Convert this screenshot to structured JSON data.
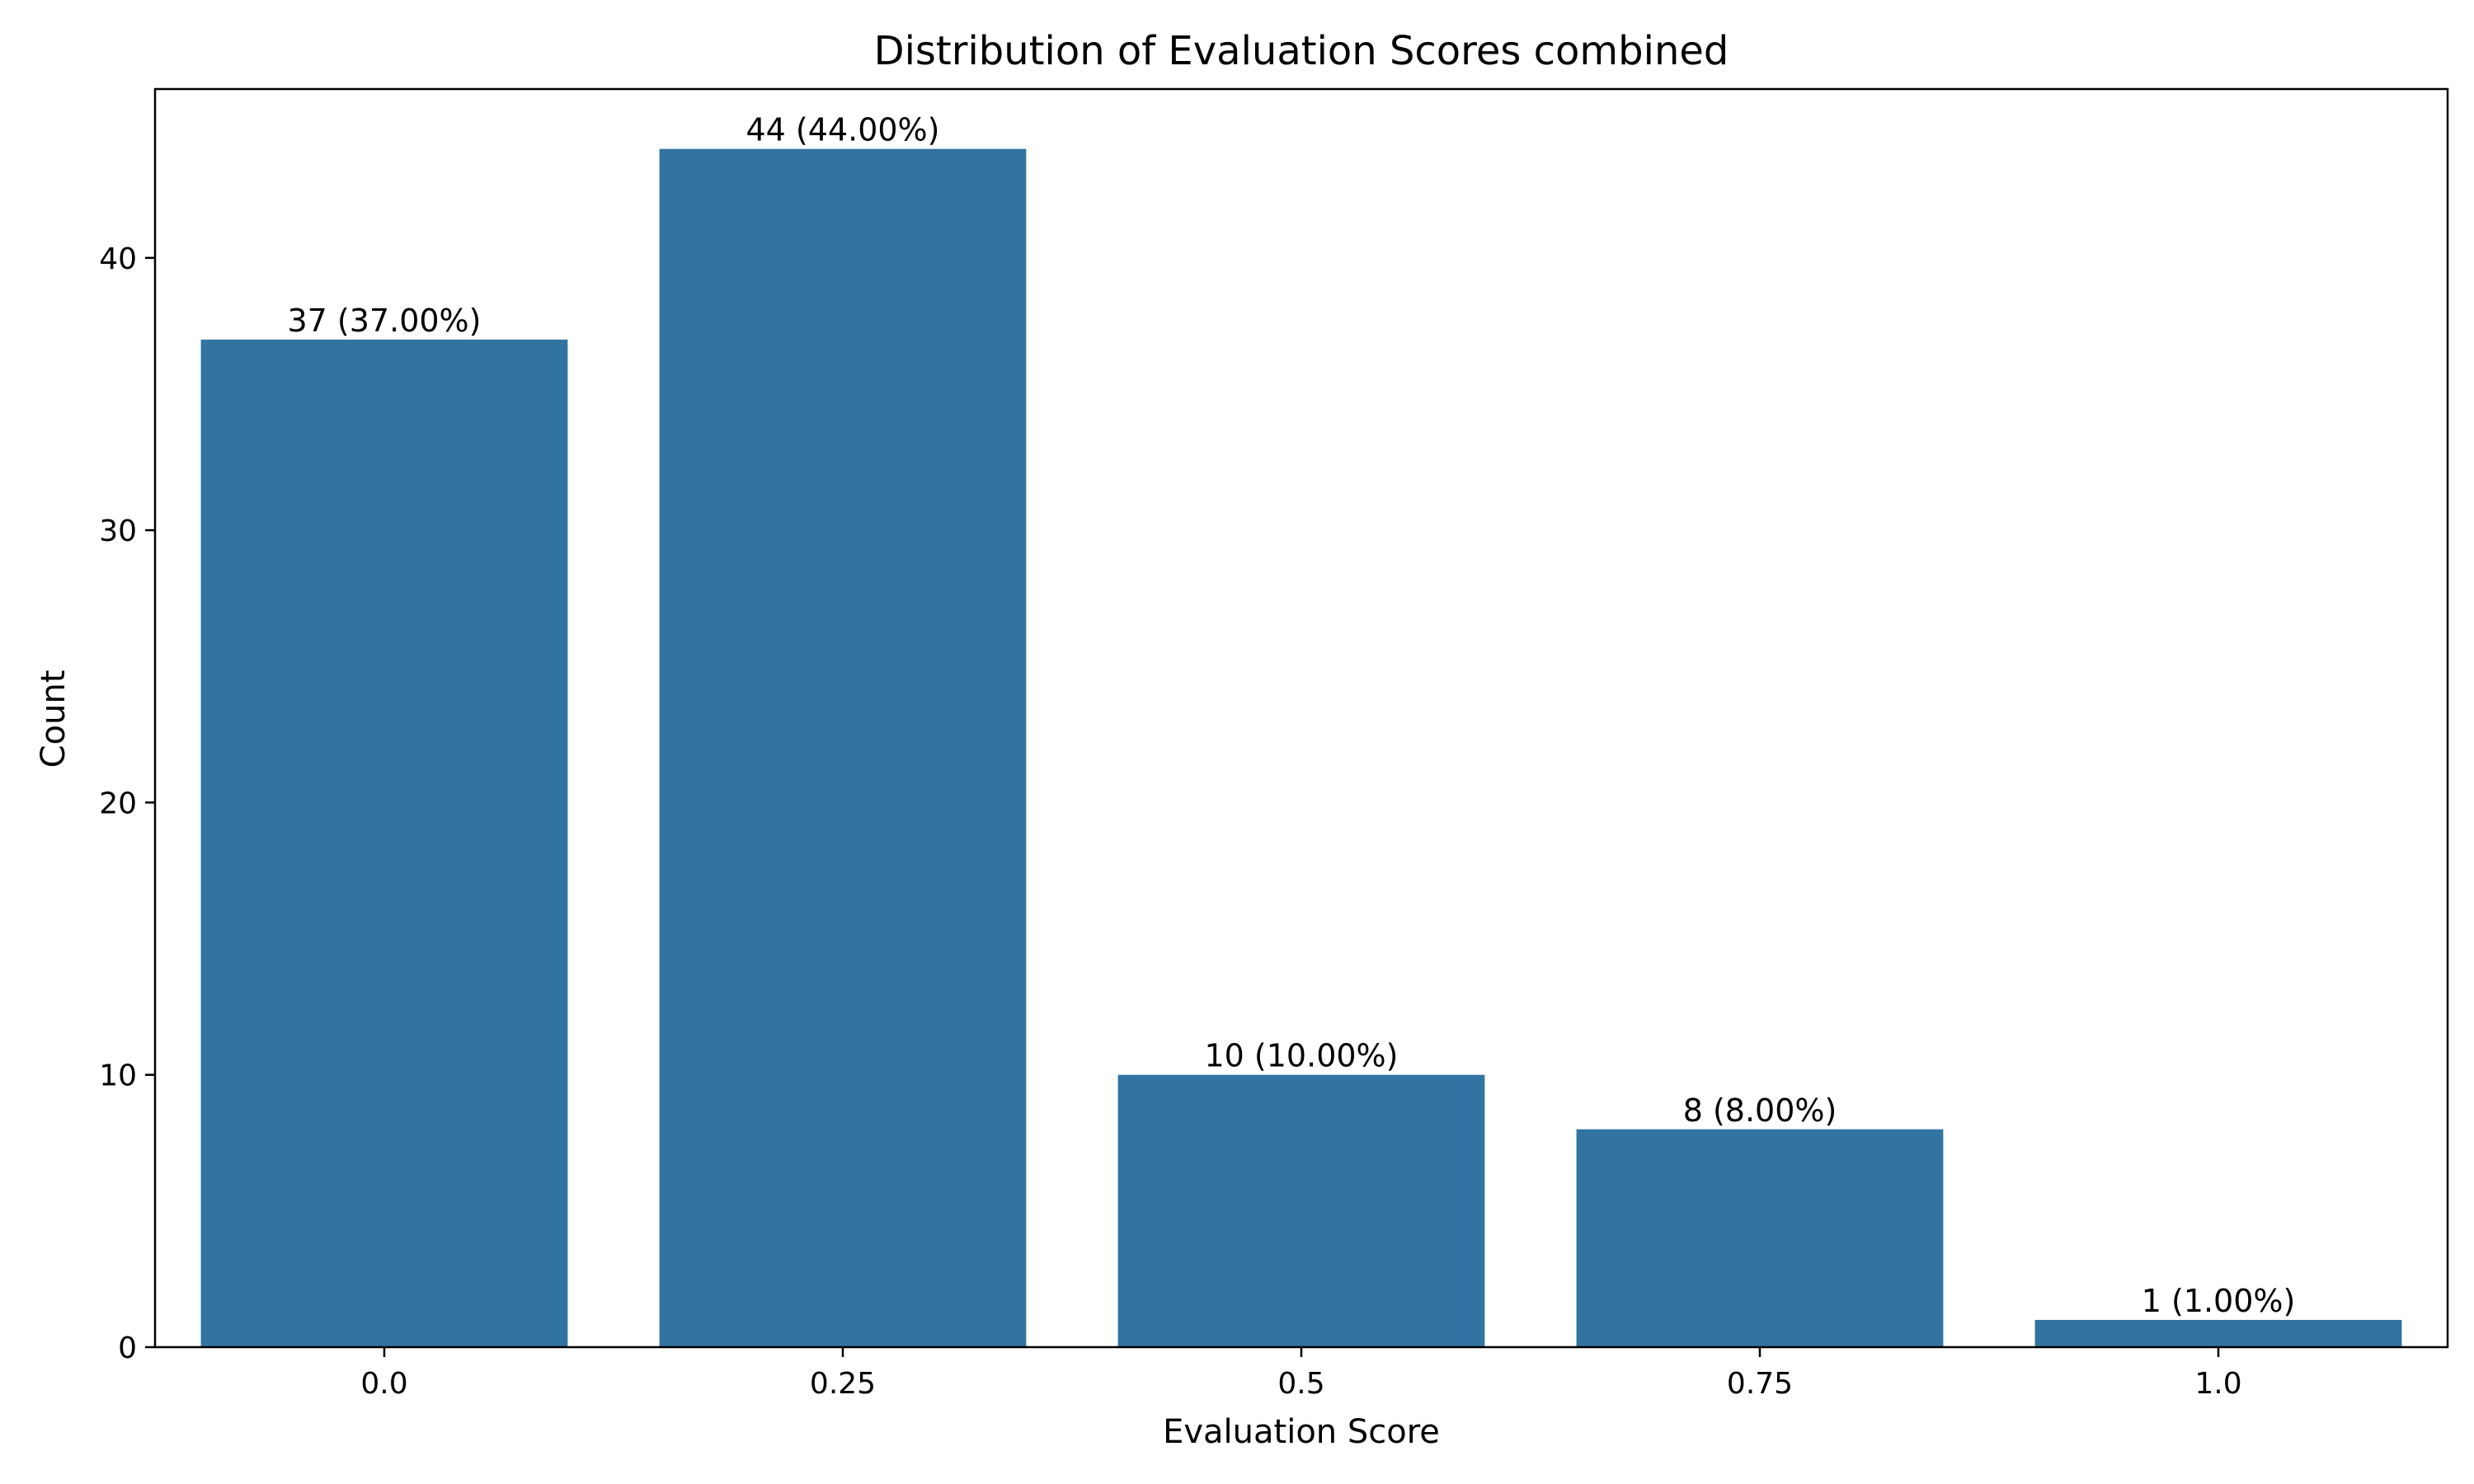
{
  "chart_data": {
    "type": "bar",
    "title": "Distribution of Evaluation Scores combined",
    "xlabel": "Evaluation Score",
    "ylabel": "Count",
    "categories": [
      "0.0",
      "0.25",
      "0.5",
      "0.75",
      "1.0"
    ],
    "values": [
      37,
      44,
      10,
      8,
      1
    ],
    "data_labels": [
      "37 (37.00%)",
      "44 (44.00%)",
      "10 (10.00%)",
      "8 (8.00%)",
      "1 (1.00%)"
    ],
    "yticks": [
      0,
      10,
      20,
      30,
      40
    ],
    "ylim": [
      0,
      46.2
    ],
    "grid": false,
    "legend": "none",
    "bar_color": "#3274a1"
  }
}
